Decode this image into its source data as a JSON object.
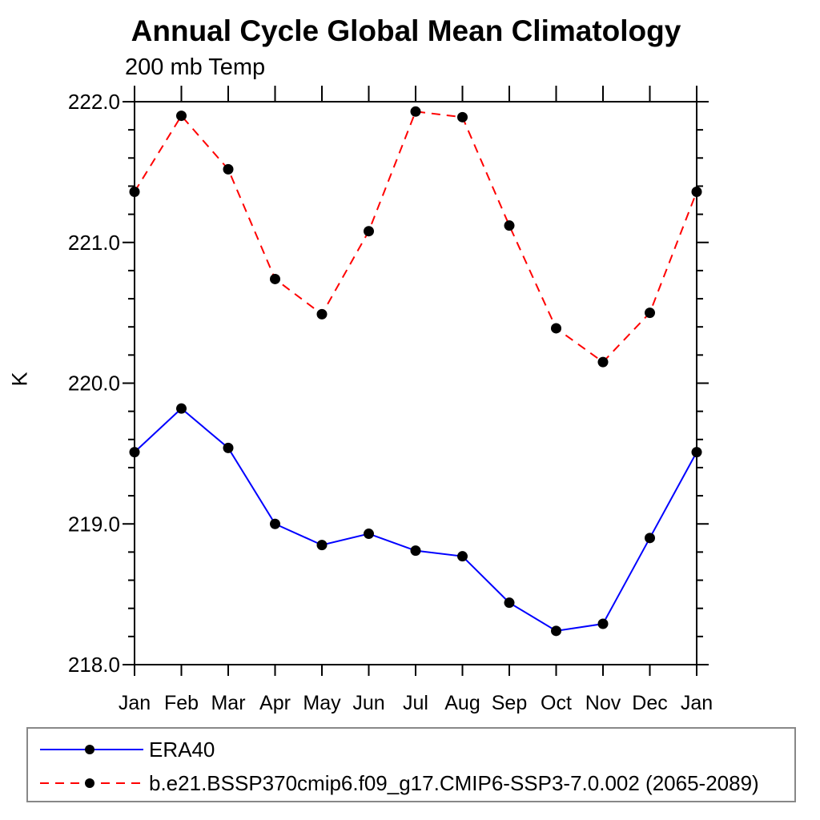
{
  "header": {
    "title": "Annual Cycle Global Mean Climatology",
    "subtitle": "200 mb Temp"
  },
  "chart_data": {
    "type": "line",
    "title": "Annual Cycle Global Mean Climatology",
    "subtitle": "200 mb Temp",
    "xlabel": "",
    "ylabel": "K",
    "categories": [
      "Jan",
      "Feb",
      "Mar",
      "Apr",
      "May",
      "Jun",
      "Jul",
      "Aug",
      "Sep",
      "Oct",
      "Nov",
      "Dec",
      "Jan"
    ],
    "series": [
      {
        "name": "ERA40",
        "color": "#0000ff",
        "style": "solid",
        "values": [
          219.51,
          219.82,
          219.54,
          219.0,
          218.85,
          218.93,
          218.81,
          218.77,
          218.44,
          218.24,
          218.29,
          218.9,
          219.51
        ]
      },
      {
        "name": "b.e21.BSSP370cmip6.f09_g17.CMIP6-SSP3-7.0.002 (2065-2089)",
        "color": "#ff0000",
        "style": "dashed",
        "dash": "11 8",
        "values": [
          221.36,
          221.9,
          221.52,
          220.74,
          220.49,
          221.08,
          221.93,
          221.89,
          221.12,
          220.39,
          220.15,
          220.5,
          221.36
        ]
      }
    ],
    "marker": {
      "shape": "circle",
      "color": "#000000",
      "radius": 6.5
    },
    "ylim": [
      218.0,
      222.0
    ],
    "ytick_labels": [
      "218.0",
      "219.0",
      "220.0",
      "221.0",
      "222.0"
    ],
    "ytick_major_step": 1.0,
    "ytick_minor_step": 0.2,
    "axis_color": "#000000",
    "grid": false,
    "legend_position": "bottom"
  }
}
